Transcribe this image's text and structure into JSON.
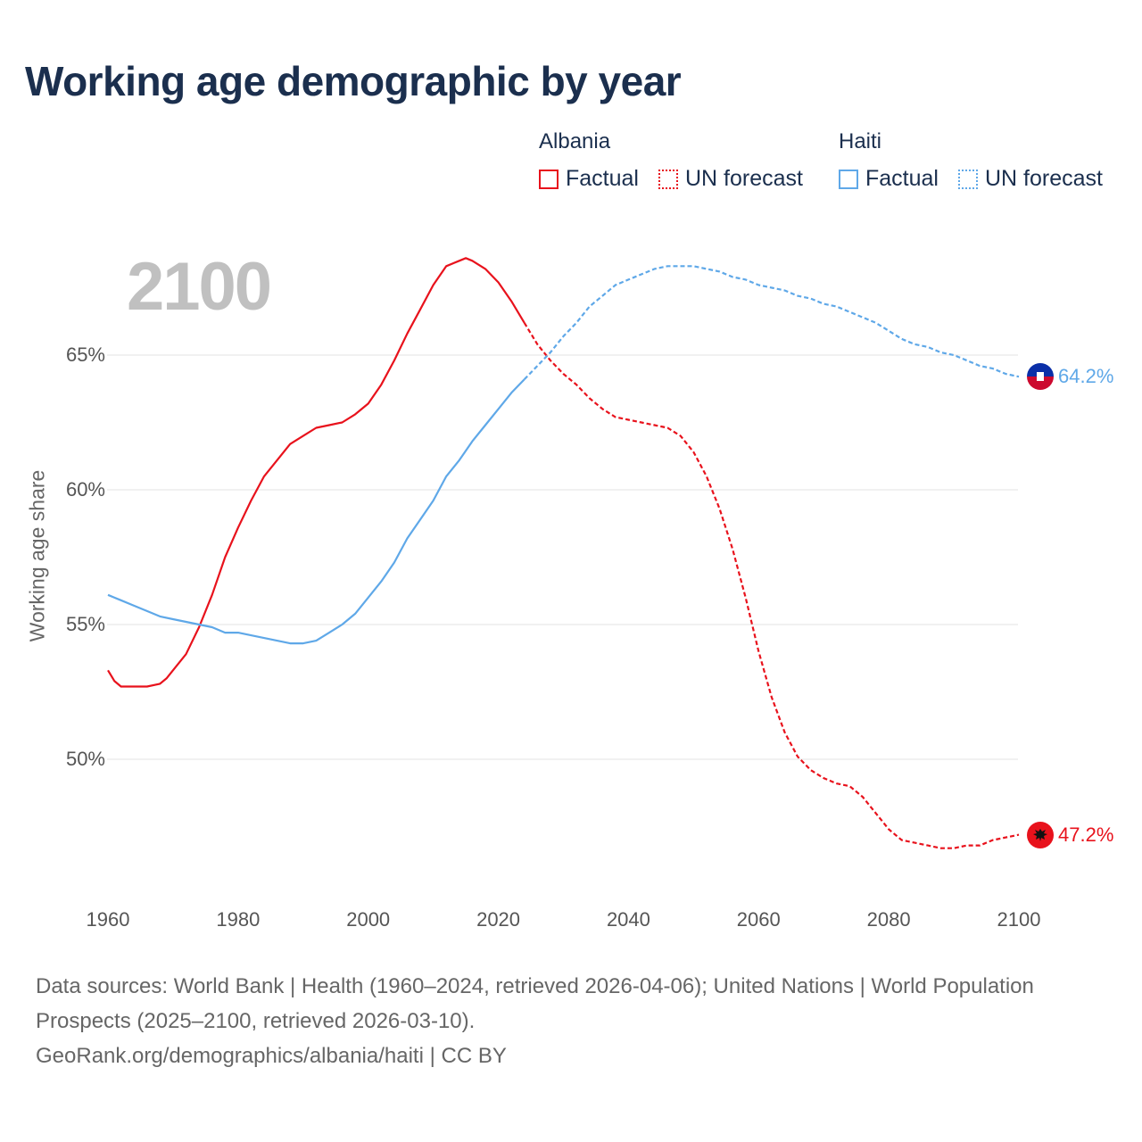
{
  "chart_data": {
    "type": "line",
    "title": "Working age demographic by year",
    "current_year": "2100",
    "ylabel": "Working age share",
    "xlim": [
      1960,
      2100
    ],
    "ylim": [
      45.5,
      70
    ],
    "y_ticks": [
      {
        "value": 50,
        "label": "50%"
      },
      {
        "value": 55,
        "label": "55%"
      },
      {
        "value": 60,
        "label": "60%"
      },
      {
        "value": 65,
        "label": "65%"
      }
    ],
    "x_ticks": [
      {
        "value": 1960,
        "label": "1960"
      },
      {
        "value": 1980,
        "label": "1980"
      },
      {
        "value": 2000,
        "label": "2000"
      },
      {
        "value": 2020,
        "label": "2020"
      },
      {
        "value": 2040,
        "label": "2040"
      },
      {
        "value": 2060,
        "label": "2060"
      },
      {
        "value": 2080,
        "label": "2080"
      },
      {
        "value": 2100,
        "label": "2100"
      }
    ],
    "legend": {
      "factual_label": "Factual",
      "forecast_label": "UN forecast"
    },
    "series": [
      {
        "name": "Albania",
        "color": "#e8121c",
        "end_label": "47.2%",
        "factual": [
          [
            1960,
            53.3
          ],
          [
            1961,
            52.9
          ],
          [
            1962,
            52.7
          ],
          [
            1964,
            52.7
          ],
          [
            1966,
            52.7
          ],
          [
            1968,
            52.8
          ],
          [
            1969,
            53.0
          ],
          [
            1970,
            53.3
          ],
          [
            1972,
            53.9
          ],
          [
            1974,
            54.9
          ],
          [
            1976,
            56.1
          ],
          [
            1978,
            57.5
          ],
          [
            1980,
            58.6
          ],
          [
            1982,
            59.6
          ],
          [
            1984,
            60.5
          ],
          [
            1986,
            61.1
          ],
          [
            1988,
            61.7
          ],
          [
            1990,
            62.0
          ],
          [
            1992,
            62.3
          ],
          [
            1994,
            62.4
          ],
          [
            1996,
            62.5
          ],
          [
            1998,
            62.8
          ],
          [
            2000,
            63.2
          ],
          [
            2002,
            63.9
          ],
          [
            2004,
            64.8
          ],
          [
            2006,
            65.8
          ],
          [
            2008,
            66.7
          ],
          [
            2010,
            67.6
          ],
          [
            2012,
            68.3
          ],
          [
            2014,
            68.5
          ],
          [
            2015,
            68.6
          ],
          [
            2016,
            68.5
          ],
          [
            2018,
            68.2
          ],
          [
            2020,
            67.7
          ],
          [
            2022,
            67.0
          ],
          [
            2024,
            66.2
          ]
        ],
        "forecast": [
          [
            2024,
            66.2
          ],
          [
            2026,
            65.4
          ],
          [
            2028,
            64.8
          ],
          [
            2030,
            64.3
          ],
          [
            2032,
            63.9
          ],
          [
            2034,
            63.4
          ],
          [
            2036,
            63.0
          ],
          [
            2038,
            62.7
          ],
          [
            2040,
            62.6
          ],
          [
            2042,
            62.5
          ],
          [
            2044,
            62.4
          ],
          [
            2046,
            62.3
          ],
          [
            2048,
            62.0
          ],
          [
            2050,
            61.4
          ],
          [
            2052,
            60.5
          ],
          [
            2054,
            59.3
          ],
          [
            2056,
            57.8
          ],
          [
            2058,
            56.0
          ],
          [
            2060,
            54.0
          ],
          [
            2062,
            52.3
          ],
          [
            2064,
            51.0
          ],
          [
            2066,
            50.1
          ],
          [
            2068,
            49.6
          ],
          [
            2070,
            49.3
          ],
          [
            2072,
            49.1
          ],
          [
            2074,
            49.0
          ],
          [
            2076,
            48.6
          ],
          [
            2078,
            48.0
          ],
          [
            2080,
            47.4
          ],
          [
            2082,
            47.0
          ],
          [
            2084,
            46.9
          ],
          [
            2086,
            46.8
          ],
          [
            2088,
            46.7
          ],
          [
            2090,
            46.7
          ],
          [
            2092,
            46.8
          ],
          [
            2094,
            46.8
          ],
          [
            2096,
            47.0
          ],
          [
            2098,
            47.1
          ],
          [
            2100,
            47.2
          ]
        ]
      },
      {
        "name": "Haiti",
        "color": "#5fa8e8",
        "end_label": "64.2%",
        "factual": [
          [
            1960,
            56.1
          ],
          [
            1962,
            55.9
          ],
          [
            1964,
            55.7
          ],
          [
            1966,
            55.5
          ],
          [
            1968,
            55.3
          ],
          [
            1970,
            55.2
          ],
          [
            1972,
            55.1
          ],
          [
            1974,
            55.0
          ],
          [
            1976,
            54.9
          ],
          [
            1978,
            54.7
          ],
          [
            1980,
            54.7
          ],
          [
            1982,
            54.6
          ],
          [
            1984,
            54.5
          ],
          [
            1986,
            54.4
          ],
          [
            1988,
            54.3
          ],
          [
            1990,
            54.3
          ],
          [
            1992,
            54.4
          ],
          [
            1994,
            54.7
          ],
          [
            1996,
            55.0
          ],
          [
            1998,
            55.4
          ],
          [
            2000,
            56.0
          ],
          [
            2002,
            56.6
          ],
          [
            2004,
            57.3
          ],
          [
            2006,
            58.2
          ],
          [
            2008,
            58.9
          ],
          [
            2010,
            59.6
          ],
          [
            2012,
            60.5
          ],
          [
            2014,
            61.1
          ],
          [
            2016,
            61.8
          ],
          [
            2018,
            62.4
          ],
          [
            2020,
            63.0
          ],
          [
            2022,
            63.6
          ],
          [
            2024,
            64.1
          ]
        ],
        "forecast": [
          [
            2024,
            64.1
          ],
          [
            2026,
            64.6
          ],
          [
            2028,
            65.1
          ],
          [
            2030,
            65.7
          ],
          [
            2032,
            66.2
          ],
          [
            2034,
            66.8
          ],
          [
            2036,
            67.2
          ],
          [
            2038,
            67.6
          ],
          [
            2040,
            67.8
          ],
          [
            2042,
            68.0
          ],
          [
            2044,
            68.2
          ],
          [
            2046,
            68.3
          ],
          [
            2048,
            68.3
          ],
          [
            2050,
            68.3
          ],
          [
            2052,
            68.2
          ],
          [
            2054,
            68.1
          ],
          [
            2056,
            67.9
          ],
          [
            2058,
            67.8
          ],
          [
            2060,
            67.6
          ],
          [
            2062,
            67.5
          ],
          [
            2064,
            67.4
          ],
          [
            2066,
            67.2
          ],
          [
            2068,
            67.1
          ],
          [
            2070,
            66.9
          ],
          [
            2072,
            66.8
          ],
          [
            2074,
            66.6
          ],
          [
            2076,
            66.4
          ],
          [
            2078,
            66.2
          ],
          [
            2080,
            65.9
          ],
          [
            2082,
            65.6
          ],
          [
            2084,
            65.4
          ],
          [
            2086,
            65.3
          ],
          [
            2088,
            65.1
          ],
          [
            2090,
            65.0
          ],
          [
            2092,
            64.8
          ],
          [
            2094,
            64.6
          ],
          [
            2096,
            64.5
          ],
          [
            2098,
            64.3
          ],
          [
            2100,
            64.2
          ]
        ]
      }
    ]
  },
  "footer": {
    "sources": "Data sources: World Bank | Health (1960–2024, retrieved 2026-04-06); United Nations | World Population Prospects (2025–2100, retrieved 2026-03-10).",
    "link": "GeoRank.org/demographics/albania/haiti | CC BY"
  }
}
